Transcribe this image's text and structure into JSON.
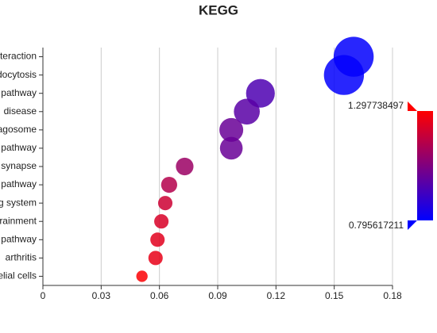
{
  "chart_data": {
    "type": "bubble",
    "title": "KEGG",
    "categories": [
      "teraction",
      "docytosis",
      "pathway",
      " disease",
      "agosome",
      "pathway",
      "synapse",
      "pathway",
      "g system",
      "rainment",
      "pathway",
      "arthritis",
      "elial cells"
    ],
    "values": [
      0.16,
      0.155,
      0.112,
      0.105,
      0.097,
      0.097,
      0.073,
      0.065,
      0.063,
      0.061,
      0.059,
      0.058,
      0.051
    ],
    "sizes": [
      62,
      62,
      32,
      26,
      22,
      20,
      12,
      10,
      8,
      8,
      8,
      8,
      5
    ],
    "color_values": [
      0.8,
      0.8,
      0.95,
      0.97,
      1.0,
      1.0,
      1.1,
      1.15,
      1.2,
      1.22,
      1.24,
      1.25,
      1.29
    ],
    "clim": [
      0.795617211,
      1.297738497
    ],
    "colors": [
      "#0000ff",
      "#ff0000"
    ],
    "xlim": [
      0,
      0.18
    ],
    "xticks": [
      0,
      0.03,
      0.06,
      0.09,
      0.12,
      0.15,
      0.18
    ],
    "grid": true
  }
}
